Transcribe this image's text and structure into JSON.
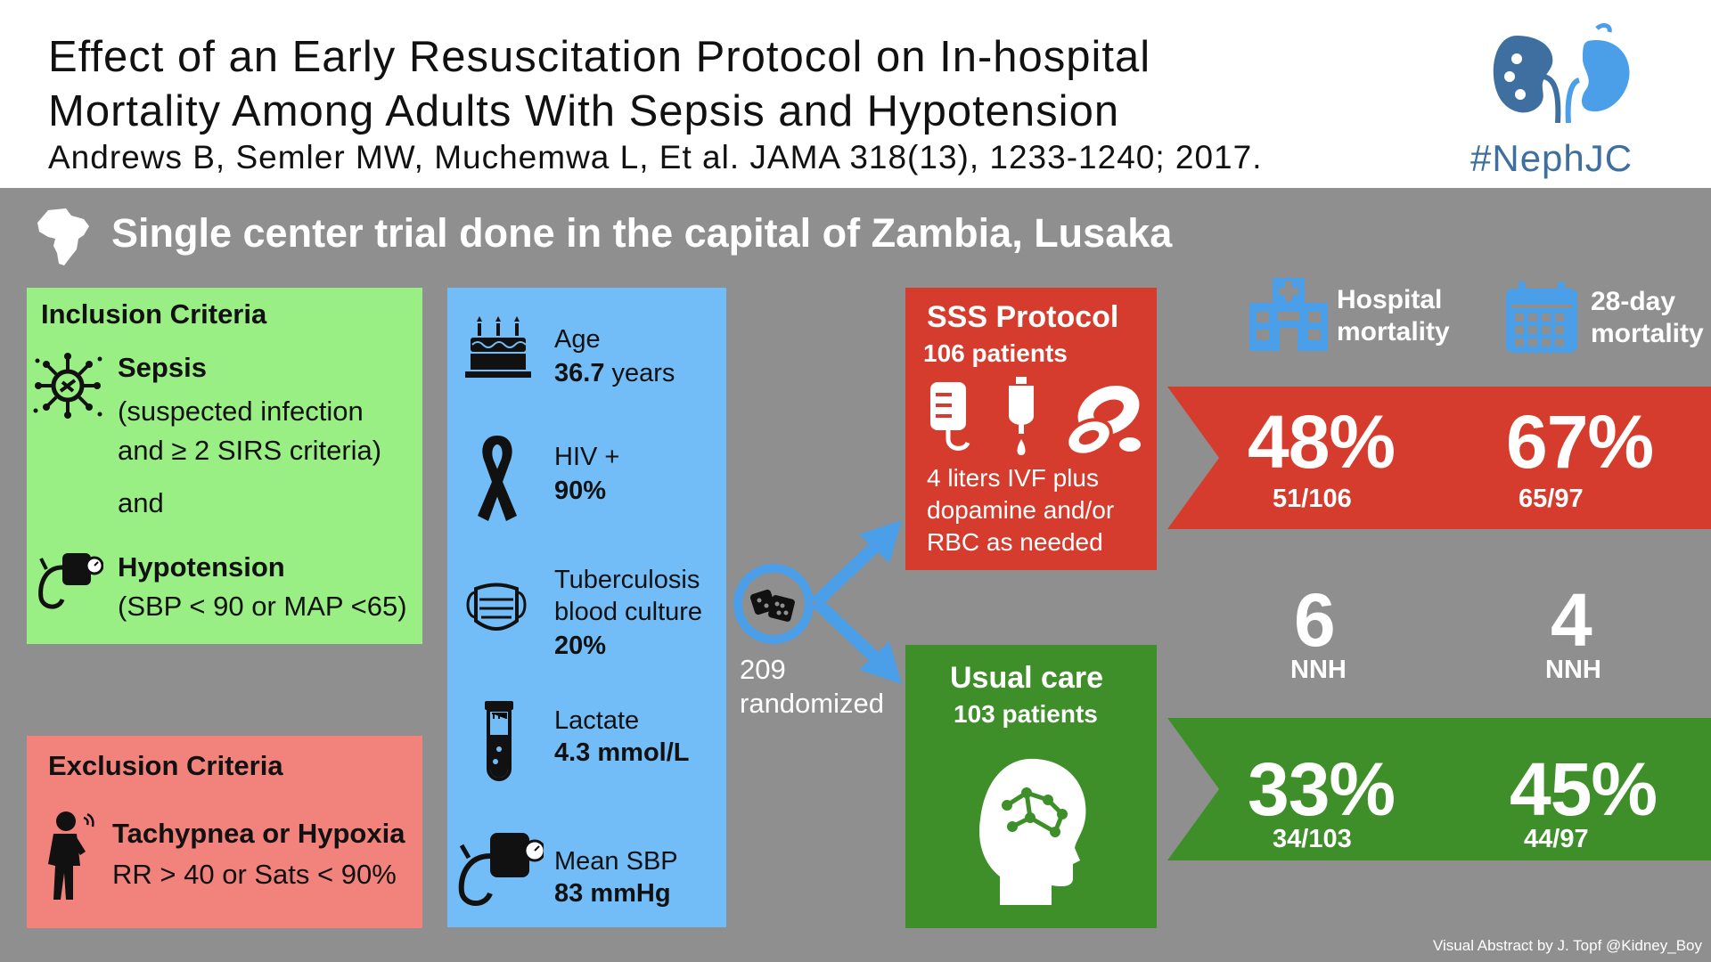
{
  "header": {
    "title_line1": "Effect of an Early Resuscitation Protocol on In-hospital",
    "title_line2": "Mortality Among Adults With Sepsis and Hypotension",
    "citation": "Andrews B, Semler MW, Muchemwa L, Et al. JAMA 318(13), 1233-1240; 2017.",
    "logo_text": "#NephJC"
  },
  "subtitle": "Single center trial done in the capital of Zambia, Lusaka",
  "inclusion": {
    "heading": "Inclusion Criteria",
    "sepsis_title": "Sepsis",
    "sepsis_line1": "(suspected infection",
    "sepsis_line2": "and ≥ 2 SIRS criteria)",
    "and": "and",
    "hypo_title": "Hypotension",
    "hypo_detail": "(SBP < 90 or MAP <65)"
  },
  "exclusion": {
    "heading": "Exclusion Criteria",
    "item_title": "Tachypnea or Hypoxia",
    "item_detail": "RR > 40 or Sats < 90%"
  },
  "demographics": {
    "age_label": "Age",
    "age_value": "36.7",
    "age_unit": " years",
    "hiv_label": "HIV +",
    "hiv_value": "90%",
    "tb_label1": "Tuberculosis",
    "tb_label2": "blood culture",
    "tb_value": "20%",
    "lactate_label": "Lactate",
    "lactate_value": "4.3 mmol/L",
    "sbp_label": "Mean SBP",
    "sbp_value": "83 mmHg"
  },
  "randomized": {
    "count": "209",
    "label": "randomized"
  },
  "sss": {
    "title": "SSS Protocol",
    "patients": "106 patients",
    "desc1": "4 liters IVF plus",
    "desc2": "dopamine and/or",
    "desc3": "RBC as needed"
  },
  "usual": {
    "title": "Usual care",
    "patients": "103 patients"
  },
  "outcomes": {
    "hospital_label1": "Hospital",
    "hospital_label2": "mortality",
    "day28_label1": "28-day",
    "day28_label2": "mortality",
    "sss_hospital_pct": "48%",
    "sss_hospital_frac": "51/106",
    "sss_28d_pct": "67%",
    "sss_28d_frac": "65/97",
    "nnh_hospital": "6",
    "nnh_28d": "4",
    "nnh_label": "NNH",
    "usual_hospital_pct": "33%",
    "usual_hospital_frac": "34/103",
    "usual_28d_pct": "45%",
    "usual_28d_frac": "44/97"
  },
  "credit": "Visual Abstract by J. Topf @Kidney_Boy",
  "colors": {
    "background": "#8f8f8f",
    "inclusion": "#99ef84",
    "exclusion": "#f2827c",
    "demographics": "#72bdf7",
    "sss": "#d63c2d",
    "usual": "#3e8f2a",
    "accent_blue": "#4a9fe8",
    "logo_blue": "#3f6fa0"
  }
}
